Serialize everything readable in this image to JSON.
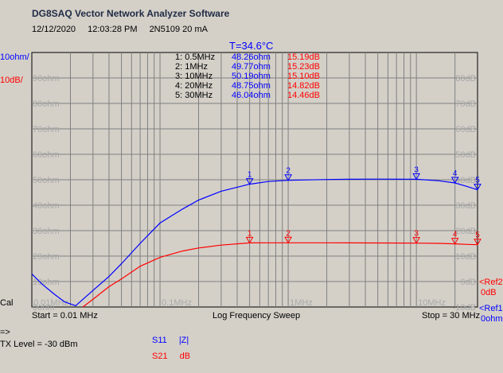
{
  "window": {
    "title": "DG8SAQ Vector Network Analyzer Software",
    "date": "12/12/2020",
    "time": "12:03:28 PM",
    "device": "2N5109 20 mA",
    "temperature": "T=34.6°C"
  },
  "footer": {
    "start": "Start = 0.01 MHz",
    "sweep": "Log Frequency Sweep",
    "stop": "Stop = 30 MHz",
    "arrow": "=>",
    "tx_level": "TX Level = -30 dBm"
  },
  "legend": {
    "s11_name": "S11",
    "s11_unit": "|Z|",
    "s21_name": "S21",
    "s21_unit": "dB"
  },
  "colors": {
    "s11": "#0000ff",
    "s21": "#ff0000",
    "grid": "#808080",
    "plot_bg": "#d4d0c8"
  },
  "markers": [
    {
      "label": "1: 0.5MHz",
      "z": "48.26ohm",
      "db": "15.19dB"
    },
    {
      "label": "2: 1MHz",
      "z": "49.77ohm",
      "db": "15.23dB"
    },
    {
      "label": "3: 10MHz",
      "z": "50.19ohm",
      "db": "15.10dB"
    },
    {
      "label": "4: 20MHz",
      "z": "48.75ohm",
      "db": "14.82dB"
    },
    {
      "label": "5: 30MHz",
      "z": "46.04ohm",
      "db": "14.46dB"
    }
  ],
  "chart_data": {
    "type": "line",
    "xscale": "log",
    "xlim": [
      0.01,
      30
    ],
    "x_ticks": [
      "0.01MHz",
      "0.1MHz",
      "1MHz",
      "10MHz"
    ],
    "left_axis": {
      "scale_label": "10ohm/",
      "ticks": [
        "0ohm",
        "10ohm",
        "20ohm",
        "30ohm",
        "40ohm",
        "50ohm",
        "60ohm",
        "70ohm",
        "80ohm",
        "90ohm"
      ],
      "ylim": [
        0,
        100
      ]
    },
    "right_axis": {
      "scale_label": "10dB/",
      "ticks": [
        "-10dB",
        "0dB",
        "10dB",
        "20dB",
        "30dB",
        "40dB",
        "50dB",
        "60dB",
        "70dB",
        "80dB"
      ],
      "ylim": [
        -10,
        90
      ]
    },
    "ref_labels": {
      "ref1": "<Ref1",
      "ref1_value": "0ohm",
      "ref2": "<Ref2",
      "ref2_value": "0dB",
      "cal": "Cal"
    },
    "series": [
      {
        "name": "S11",
        "x": [
          0.01,
          0.012,
          0.015,
          0.018,
          0.022,
          0.025,
          0.03,
          0.04,
          0.05,
          0.07,
          0.1,
          0.15,
          0.2,
          0.3,
          0.5,
          0.7,
          1,
          2,
          3,
          5,
          10,
          15,
          20,
          25,
          30
        ],
        "y": [
          13,
          9,
          5,
          2,
          0.5,
          3,
          6.5,
          12,
          17,
          25,
          33,
          38.5,
          42,
          45.5,
          48.26,
          49.3,
          49.77,
          50.1,
          50.2,
          50.25,
          50.19,
          49.6,
          48.75,
          47.3,
          46.04
        ]
      },
      {
        "name": "S21",
        "x": [
          0.025,
          0.03,
          0.04,
          0.05,
          0.07,
          0.1,
          0.15,
          0.2,
          0.3,
          0.5,
          0.7,
          1,
          2,
          3,
          5,
          10,
          15,
          20,
          25,
          30
        ],
        "y": [
          -10,
          -7,
          -2,
          1,
          6,
          9.5,
          12,
          13.2,
          14.3,
          15.19,
          15.22,
          15.23,
          15.22,
          15.18,
          15.15,
          15.1,
          15.0,
          14.82,
          14.6,
          14.46
        ]
      }
    ]
  }
}
